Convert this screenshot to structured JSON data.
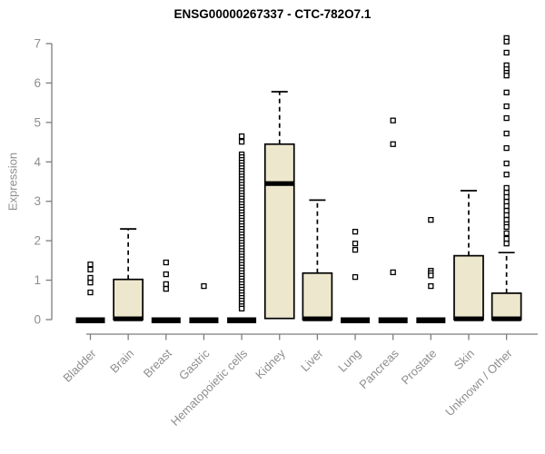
{
  "chart_data": {
    "type": "boxplot",
    "title": "ENSG00000267337 - CTC-782O7.1",
    "ylabel": "Expression",
    "xlabel": "",
    "ylim": [
      0,
      7
    ],
    "yticks": [
      0,
      1,
      2,
      3,
      4,
      5,
      6,
      7
    ],
    "grid": false,
    "legend": false,
    "categories": [
      "Bladder",
      "Brain",
      "Breast",
      "Gastric",
      "Hematopoietic cells",
      "Kidney",
      "Liver",
      "Lung",
      "Pancreas",
      "Prostate",
      "Skin",
      "Unknown / Other"
    ],
    "series": [
      {
        "category": "Bladder",
        "q1": 0,
        "median": 0,
        "q3": 0,
        "whisker_low": 0,
        "whisker_high": 0,
        "outliers": [
          1.4,
          1.27,
          1.06,
          0.94,
          0.69
        ]
      },
      {
        "category": "Brain",
        "q1": 0,
        "median": 0.02,
        "q3": 1.02,
        "whisker_low": 0,
        "whisker_high": 2.3,
        "outliers": []
      },
      {
        "category": "Breast",
        "q1": 0,
        "median": 0,
        "q3": 0,
        "whisker_low": 0,
        "whisker_high": 0,
        "outliers": [
          1.45,
          1.15,
          0.9,
          0.78
        ]
      },
      {
        "category": "Gastric",
        "q1": 0,
        "median": 0,
        "q3": 0,
        "whisker_low": 0,
        "whisker_high": 0,
        "outliers": [
          0.85
        ]
      },
      {
        "category": "Hematopoietic cells",
        "q1": 0,
        "median": 0,
        "q3": 0,
        "whisker_low": 0,
        "whisker_high": 0,
        "outliers": [
          4.65,
          4.51,
          4.19,
          4.12,
          4.05,
          3.98,
          3.91,
          3.84,
          3.77,
          3.7,
          3.63,
          3.56,
          3.49,
          3.42,
          3.35,
          3.28,
          3.21,
          3.14,
          3.07,
          3.0,
          2.93,
          2.86,
          2.79,
          2.72,
          2.65,
          2.58,
          2.51,
          2.44,
          2.37,
          2.3,
          2.23,
          2.16,
          2.09,
          2.02,
          1.95,
          1.88,
          1.81,
          1.74,
          1.67,
          1.6,
          1.53,
          1.46,
          1.39,
          1.32,
          1.25,
          1.18,
          1.11,
          1.04,
          0.97,
          0.9,
          0.83,
          0.76,
          0.69,
          0.62,
          0.55,
          0.48,
          0.41,
          0.34,
          0.28
        ]
      },
      {
        "category": "Kidney",
        "q1": 0.03,
        "median": 3.45,
        "q3": 4.45,
        "whisker_low": 0,
        "whisker_high": 5.78,
        "outliers": []
      },
      {
        "category": "Liver",
        "q1": 0,
        "median": 0.02,
        "q3": 1.18,
        "whisker_low": 0,
        "whisker_high": 3.03,
        "outliers": []
      },
      {
        "category": "Lung",
        "q1": 0,
        "median": 0,
        "q3": 0,
        "whisker_low": 0,
        "whisker_high": 0,
        "outliers": [
          2.23,
          1.93,
          1.77,
          1.08
        ]
      },
      {
        "category": "Pancreas",
        "q1": 0,
        "median": 0,
        "q3": 0,
        "whisker_low": 0,
        "whisker_high": 0,
        "outliers": [
          5.05,
          4.45,
          1.2
        ]
      },
      {
        "category": "Prostate",
        "q1": 0,
        "median": 0,
        "q3": 0,
        "whisker_low": 0,
        "whisker_high": 0,
        "outliers": [
          2.53,
          1.24,
          1.18,
          1.12,
          0.85
        ]
      },
      {
        "category": "Skin",
        "q1": 0,
        "median": 0.02,
        "q3": 1.62,
        "whisker_low": 0,
        "whisker_high": 3.27,
        "outliers": []
      },
      {
        "category": "Unknown / Other",
        "q1": 0,
        "median": 0.02,
        "q3": 0.67,
        "whisker_low": 0,
        "whisker_high": 1.7,
        "outliers": [
          7.14,
          7.05,
          6.77,
          6.45,
          6.35,
          6.26,
          6.19,
          5.76,
          5.41,
          5.11,
          4.72,
          4.35,
          3.96,
          3.68,
          3.34,
          3.22,
          3.11,
          2.99,
          2.88,
          2.76,
          2.65,
          2.53,
          2.42,
          2.35,
          2.19,
          2.05,
          1.93
        ]
      }
    ],
    "style": {
      "background": "#ffffff",
      "box_fill": "#ede7cd",
      "box_border": "#000000",
      "median_color": "#000000",
      "whisker_color": "#000000",
      "whisker_style": "dashed",
      "outlier_marker": "open-square",
      "axis_color": "#7d7d7d",
      "tick_label_color": "#8e8e8e",
      "title_color": "#000000"
    }
  }
}
